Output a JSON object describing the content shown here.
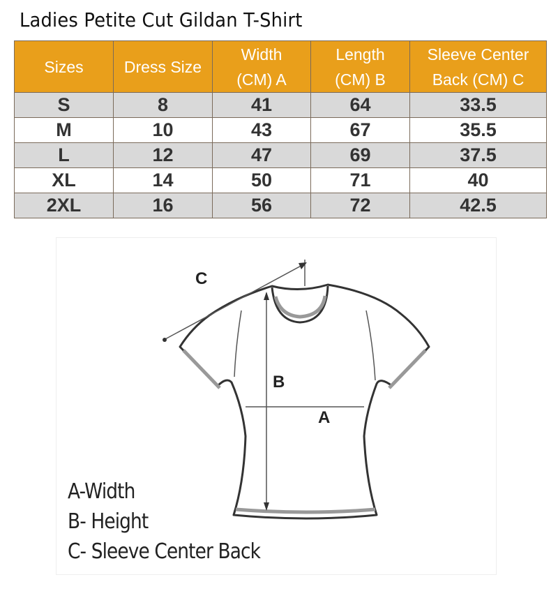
{
  "title": "Ladies Petite Cut Gildan T-Shirt",
  "table": {
    "headers": [
      "Sizes",
      "Dress Size",
      "Width (CM) A",
      "Length (CM) B",
      "Sleeve Center Back (CM) C"
    ],
    "header_lines": [
      [
        "Sizes"
      ],
      [
        "Dress Size"
      ],
      [
        "Width",
        "(CM) A"
      ],
      [
        "Length",
        "(CM) B"
      ],
      [
        "Sleeve Center",
        "Back (CM) C"
      ]
    ],
    "rows": [
      [
        "S",
        "8",
        "41",
        "64",
        "33.5"
      ],
      [
        "M",
        "10",
        "43",
        "67",
        "35.5"
      ],
      [
        "L",
        "12",
        "47",
        "69",
        "37.5"
      ],
      [
        "XL",
        "14",
        "50",
        "71",
        "40"
      ],
      [
        "2XL",
        "16",
        "56",
        "72",
        "42.5"
      ]
    ]
  },
  "diagram": {
    "labels": {
      "a": "A",
      "b": "B",
      "c": "C"
    },
    "legend": [
      "A-Width",
      "B- Height",
      "C- Sleeve Center Back"
    ]
  },
  "colors": {
    "header_bg": "#e99f1b",
    "row_alt": "#d9d9d9"
  }
}
